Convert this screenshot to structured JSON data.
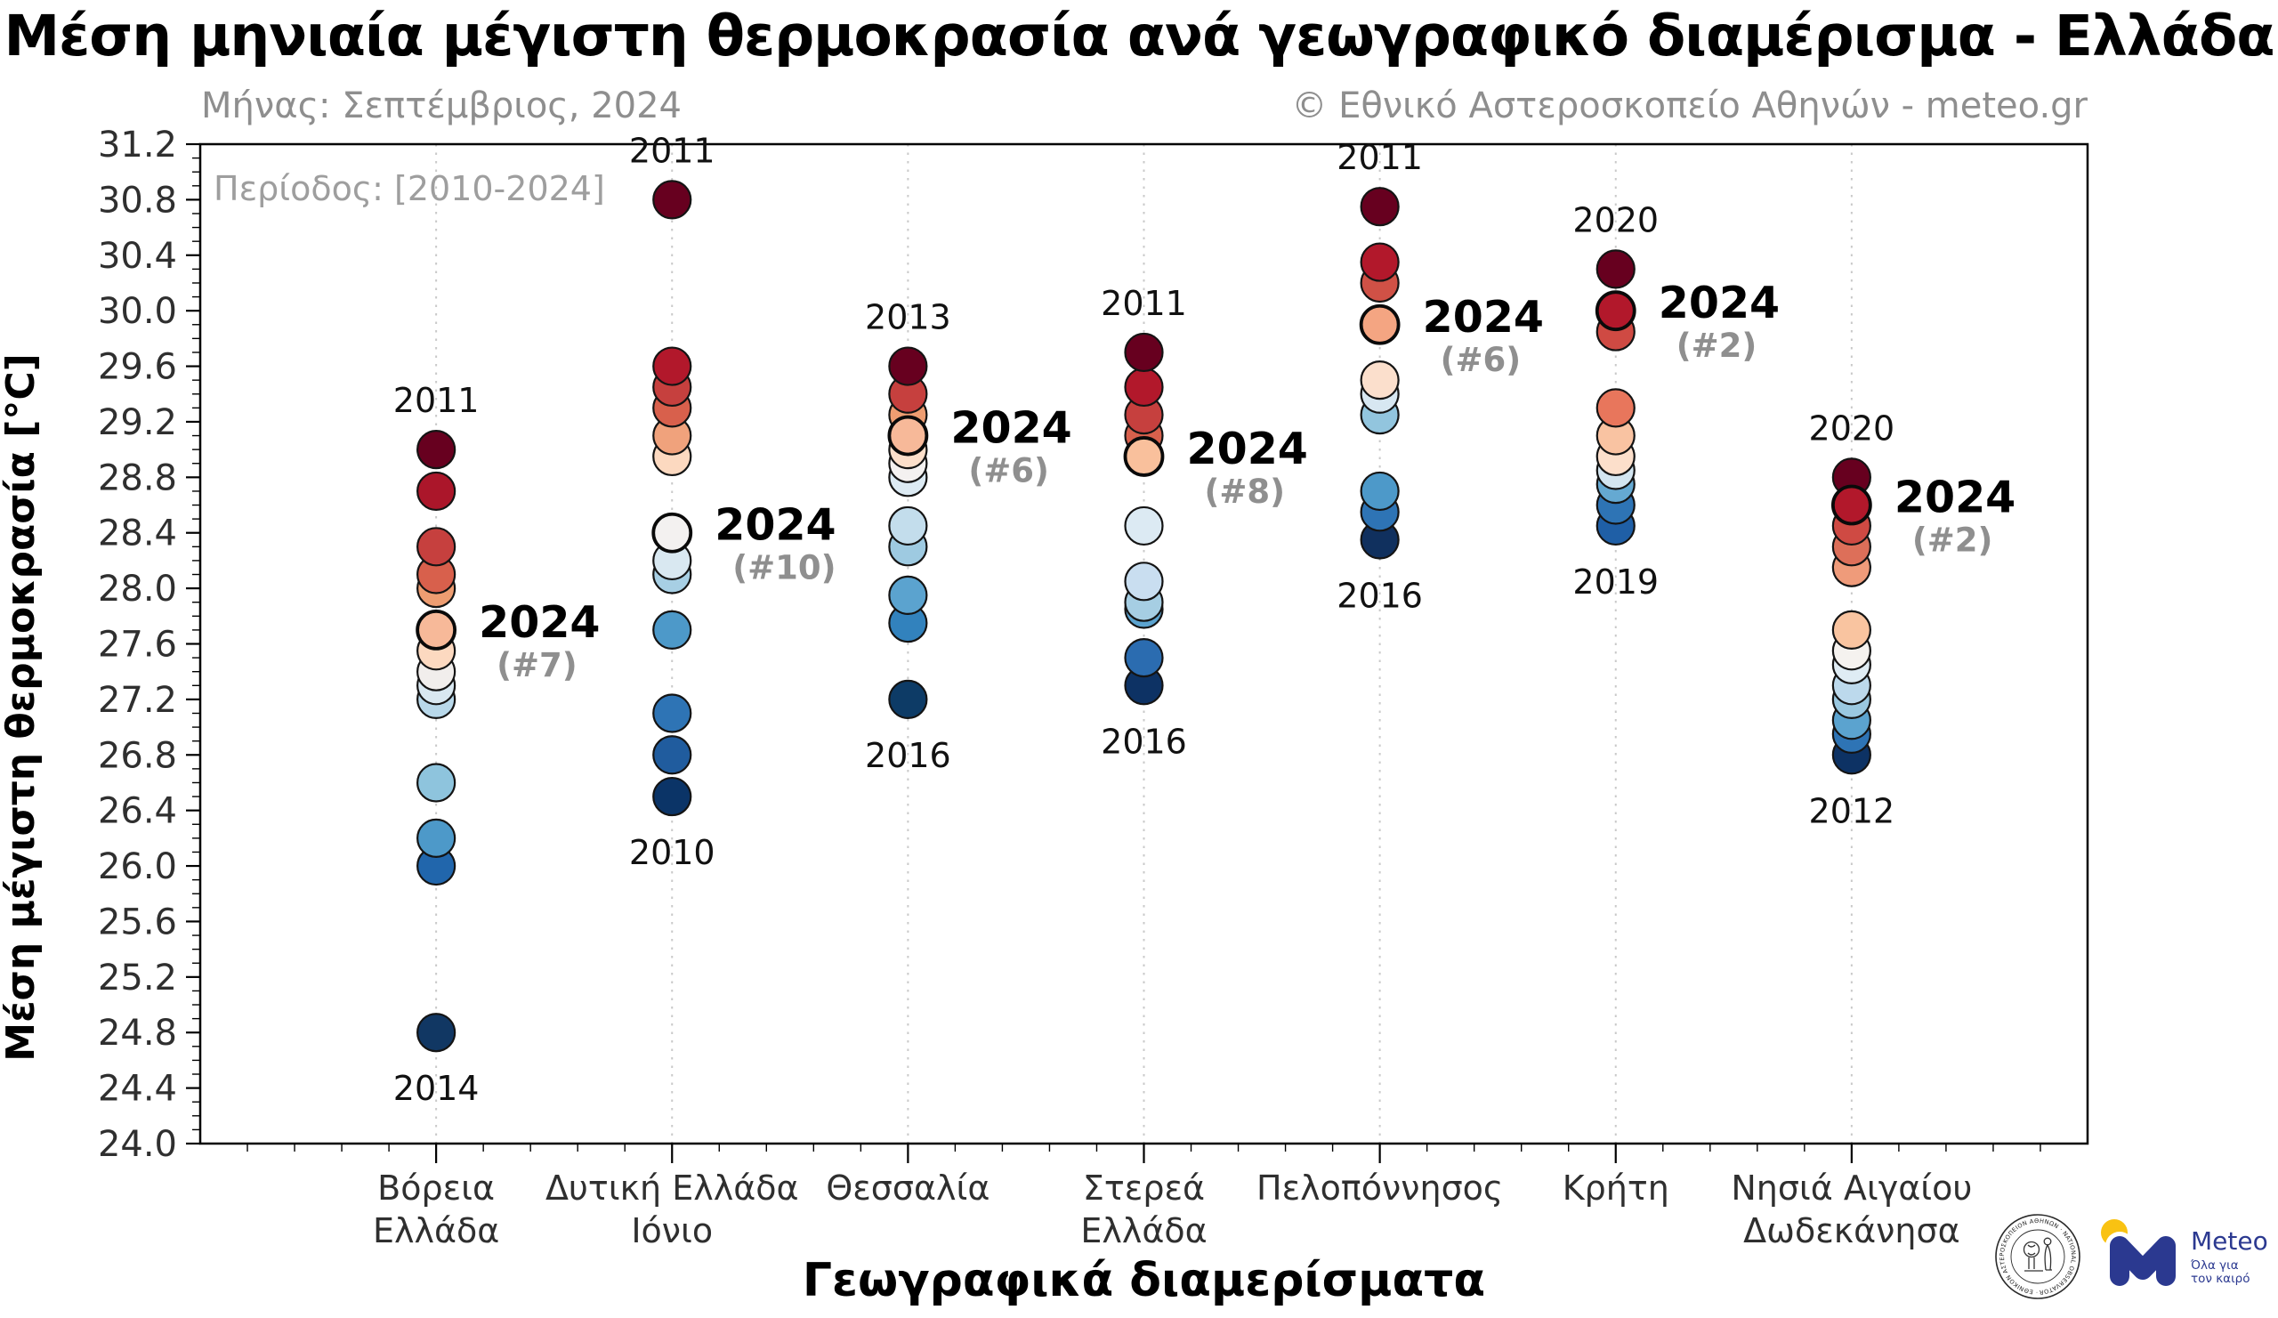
{
  "header": {
    "title": "Μέση μηνιαία μέγιστη θερμοκρασία ανά γεωγραφικό διαμέρισμα - Ελλάδα",
    "subtitle_month": "Μήνας: Σεπτέμβριος, 2024",
    "attribution": "© Εθνικό Αστεροσκοπείο Αθηνών - meteo.gr"
  },
  "chart_data": {
    "type": "scatter",
    "title": "Μέση μηνιαία μέγιστη θερμοκρασία ανά γεωγραφικό διαμέρισμα - Ελλάδα",
    "subtitle": "Μήνας: Σεπτέμβριος, 2024",
    "attribution": "© Εθνικό Αστεροσκοπείο Αθηνών - meteo.gr",
    "period_label": "Περίοδος: [2010-2024]",
    "xlabel": "Γεωγραφικά διαμερίσματα",
    "ylabel": "Μέση μέγιστη θερμοκρασία [°C]",
    "ylim": [
      24.0,
      31.2
    ],
    "ytick_step": 0.4,
    "ytick_minor_step": 0.1,
    "grid": "vertical-dotted",
    "legend": "none",
    "categories": [
      "Βόρεια Ελλάδα",
      "Δυτική Ελλάδα Ιόνιο",
      "Θεσσαλία",
      "Στερεά Ελλάδα",
      "Πελοπόννησος",
      "Κρήτη",
      "Νησιά Αιγαίου Δωδεκάνησα"
    ],
    "regions": [
      {
        "name": "Βόρεια Ελλάδα",
        "label_lines": [
          "Βόρεια",
          "Ελλάδα"
        ],
        "max_label": {
          "year": "2011",
          "value": 29.0
        },
        "min_label": {
          "year": "2014",
          "value": 24.8
        },
        "label_2024": {
          "year": "2024",
          "rank": "(#7)",
          "value": 27.7
        },
        "points": [
          {
            "t": 29.0,
            "c": "#67001f"
          },
          {
            "t": 28.7,
            "c": "#ab162a"
          },
          {
            "t": 28.3,
            "c": "#c6403e"
          },
          {
            "t": 28.1,
            "c": "#d8604c"
          },
          {
            "t": 28.0,
            "c": "#ee9d71"
          },
          {
            "t": 27.7,
            "c": "#f7b999",
            "y2024": true
          },
          {
            "t": 27.55,
            "c": "#fcd9c0"
          },
          {
            "t": 27.4,
            "c": "#f1eeec"
          },
          {
            "t": 27.3,
            "c": "#d9e8f1"
          },
          {
            "t": 27.2,
            "c": "#b8d8ea"
          },
          {
            "t": 26.6,
            "c": "#8ec4dd"
          },
          {
            "t": 26.2,
            "c": "#4d99c9"
          },
          {
            "t": 26.0,
            "c": "#2166ac"
          },
          {
            "t": 24.8,
            "c": "#113763"
          }
        ]
      },
      {
        "name": "Δυτική Ελλάδα Ιόνιο",
        "label_lines": [
          "Δυτική Ελλάδα",
          "Ιόνιο"
        ],
        "max_label": {
          "year": "2011",
          "value": 30.8
        },
        "min_label": {
          "year": "2010",
          "value": 26.5
        },
        "label_2024": {
          "year": "2024",
          "rank": "(#10)",
          "value": 28.4
        },
        "points": [
          {
            "t": 30.8,
            "c": "#67001f"
          },
          {
            "t": 29.6,
            "c": "#b2182b"
          },
          {
            "t": 29.45,
            "c": "#c6403e"
          },
          {
            "t": 29.3,
            "c": "#d8604c"
          },
          {
            "t": 29.1,
            "c": "#f0a27c"
          },
          {
            "t": 28.95,
            "c": "#fcd9c0"
          },
          {
            "t": 28.4,
            "c": "#f3f1f0",
            "y2024": true
          },
          {
            "t": 28.2,
            "c": "#d9e8f1"
          },
          {
            "t": 28.1,
            "c": "#a7cfe4"
          },
          {
            "t": 27.7,
            "c": "#4d99c9"
          },
          {
            "t": 27.1,
            "c": "#2e74b5"
          },
          {
            "t": 26.8,
            "c": "#205c9e"
          },
          {
            "t": 26.5,
            "c": "#0b3467"
          }
        ]
      },
      {
        "name": "Θεσσαλία",
        "label_lines": [
          "Θεσσαλία"
        ],
        "max_label": {
          "year": "2013",
          "value": 29.6
        },
        "min_label": {
          "year": "2016",
          "value": 27.2
        },
        "label_2024": {
          "year": "2024",
          "rank": "(#6)",
          "value": 29.1
        },
        "points": [
          {
            "t": 29.6,
            "c": "#67001f"
          },
          {
            "t": 29.4,
            "c": "#c6403e"
          },
          {
            "t": 29.25,
            "c": "#ee9d71"
          },
          {
            "t": 29.1,
            "c": "#f7b999",
            "y2024": true
          },
          {
            "t": 29.0,
            "c": "#fcdfca"
          },
          {
            "t": 28.9,
            "c": "#f4f1f0"
          },
          {
            "t": 28.8,
            "c": "#dceaf3"
          },
          {
            "t": 28.45,
            "c": "#c3ddec"
          },
          {
            "t": 28.3,
            "c": "#9ecae1"
          },
          {
            "t": 27.95,
            "c": "#5ba3cf"
          },
          {
            "t": 27.75,
            "c": "#3282bd"
          },
          {
            "t": 27.2,
            "c": "#0d3b66"
          }
        ]
      },
      {
        "name": "Στερεά Ελλάδα",
        "label_lines": [
          "Στερεά",
          "Ελλάδα"
        ],
        "max_label": {
          "year": "2011",
          "value": 29.7
        },
        "min_label": {
          "year": "2016",
          "value": 27.3
        },
        "label_2024": {
          "year": "2024",
          "rank": "(#8)",
          "value": 28.95
        },
        "points": [
          {
            "t": 29.7,
            "c": "#67001f"
          },
          {
            "t": 29.45,
            "c": "#b2182b"
          },
          {
            "t": 29.25,
            "c": "#c6403e"
          },
          {
            "t": 29.1,
            "c": "#d8604c"
          },
          {
            "t": 28.95,
            "c": "#f9c09c",
            "y2024": true
          },
          {
            "t": 28.45,
            "c": "#dceaf3"
          },
          {
            "t": 28.05,
            "c": "#c9def0"
          },
          {
            "t": 27.9,
            "c": "#a6cee3"
          },
          {
            "t": 27.85,
            "c": "#5ba3cf"
          },
          {
            "t": 27.5,
            "c": "#2b6cb0"
          },
          {
            "t": 27.3,
            "c": "#0d3264"
          }
        ]
      },
      {
        "name": "Πελοπόννησος",
        "label_lines": [
          "Πελοπόννησος"
        ],
        "max_label": {
          "year": "2011",
          "value": 30.75
        },
        "min_label": {
          "year": "2016",
          "value": 28.35
        },
        "label_2024": {
          "year": "2024",
          "rank": "(#6)",
          "value": 29.9
        },
        "points": [
          {
            "t": 30.75,
            "c": "#67001f"
          },
          {
            "t": 30.35,
            "c": "#b2182b"
          },
          {
            "t": 30.2,
            "c": "#d05146"
          },
          {
            "t": 29.9,
            "c": "#f4a582",
            "y2024": true
          },
          {
            "t": 29.5,
            "c": "#fbdfcc"
          },
          {
            "t": 29.4,
            "c": "#d7e7f1"
          },
          {
            "t": 29.25,
            "c": "#92c5de"
          },
          {
            "t": 28.7,
            "c": "#4d99c9"
          },
          {
            "t": 28.55,
            "c": "#2e74b5"
          },
          {
            "t": 28.35,
            "c": "#10305e"
          }
        ]
      },
      {
        "name": "Κρήτη",
        "label_lines": [
          "Κρήτη"
        ],
        "max_label": {
          "year": "2020",
          "value": 30.3
        },
        "min_label": {
          "year": "2019",
          "value": 28.45
        },
        "label_2024": {
          "year": "2024",
          "rank": "(#2)",
          "value": 30.0
        },
        "points": [
          {
            "t": 30.3,
            "c": "#67001f"
          },
          {
            "t": 30.0,
            "c": "#b2182b",
            "y2024": true
          },
          {
            "t": 29.85,
            "c": "#cf4a43"
          },
          {
            "t": 29.3,
            "c": "#e8765c"
          },
          {
            "t": 29.1,
            "c": "#f9c3a2"
          },
          {
            "t": 28.95,
            "c": "#fcdfcb"
          },
          {
            "t": 28.85,
            "c": "#d3e5f0"
          },
          {
            "t": 28.75,
            "c": "#65a9d2"
          },
          {
            "t": 28.6,
            "c": "#2e74b5"
          },
          {
            "t": 28.45,
            "c": "#1f5fa6"
          }
        ]
      },
      {
        "name": "Νησιά Αιγαίου Δωδεκάνησα",
        "label_lines": [
          "Νησιά Αιγαίου",
          "Δωδεκάνησα"
        ],
        "max_label": {
          "year": "2020",
          "value": 28.8
        },
        "min_label": {
          "year": "2012",
          "value": 26.8
        },
        "label_2024": {
          "year": "2024",
          "rank": "(#2)",
          "value": 28.6
        },
        "points": [
          {
            "t": 28.8,
            "c": "#67001f"
          },
          {
            "t": 28.6,
            "c": "#b2182b",
            "y2024": true
          },
          {
            "t": 28.45,
            "c": "#cf4a43"
          },
          {
            "t": 28.3,
            "c": "#dd6f59"
          },
          {
            "t": 28.15,
            "c": "#ef9b7a"
          },
          {
            "t": 27.7,
            "c": "#f9c4a0"
          },
          {
            "t": 27.55,
            "c": "#f5f2ef"
          },
          {
            "t": 27.45,
            "c": "#dfecf4"
          },
          {
            "t": 27.3,
            "c": "#bcd9ec"
          },
          {
            "t": 27.2,
            "c": "#9ac8e0"
          },
          {
            "t": 27.05,
            "c": "#5ba3cf"
          },
          {
            "t": 26.95,
            "c": "#2e74b5"
          },
          {
            "t": 26.8,
            "c": "#0d3264"
          }
        ]
      }
    ]
  },
  "colors": {
    "accent_warm_max": "#67001f",
    "accent_cold_min": "#053061",
    "grid": "#c9c9c9",
    "axis": "#000000",
    "tick_label": "#2f2f2f",
    "annotation_year": "#111111",
    "annotation_rank": "#8f8f8f",
    "subtitle_gray": "#8e8e8e"
  },
  "logos": {
    "observatory_seal": {
      "ring_text": "· ΕΘΝΙΚΟΝ ΑΣΤΕΡΟΣΚΟΠΕΙΟΝ ΑΘΗΝΩΝ · NATIONAL OBSERVATORY OF ATHENS"
    },
    "meteo": {
      "name": "Meteo",
      "tagline_line1": "Όλα για",
      "tagline_line2": "τον καιρό",
      "blue": "#2b3990",
      "yellow": "#f9c212"
    }
  }
}
